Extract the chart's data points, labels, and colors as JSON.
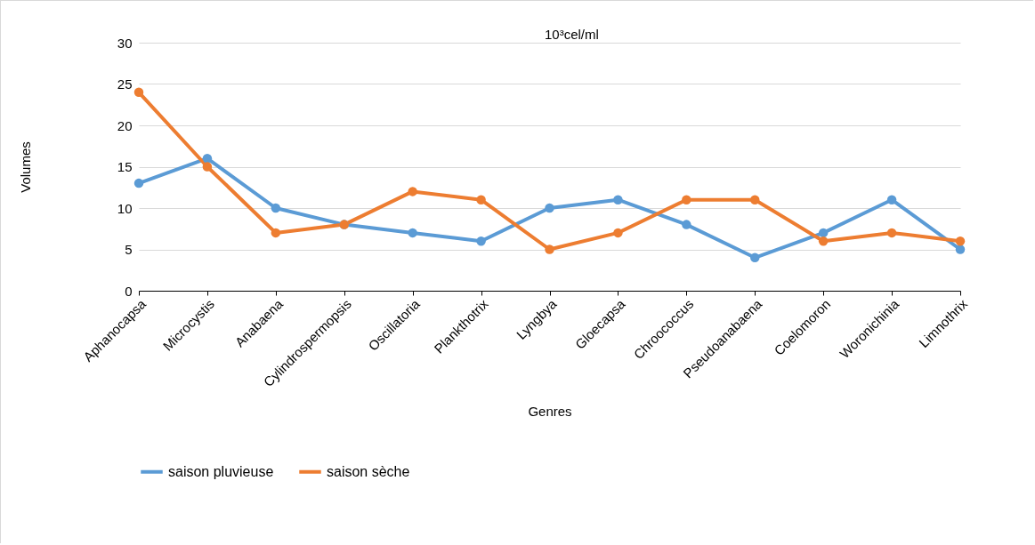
{
  "chart_data": {
    "type": "line",
    "xlabel": "Genres",
    "ylabel": "Volumes",
    "annotations": [
      "10³cel/ml"
    ],
    "categories": [
      "Aphanocapsa",
      "Microcystis",
      "Anabaena",
      "Cylindrospermopsis",
      "Oscillatoria",
      "Plankthotrix",
      "Lyngbya",
      "Gloecapsa",
      "Chroococcus",
      "Pseudoanabaena",
      "Coelomoron",
      "Woronichinia",
      "Limnothrix"
    ],
    "series": [
      {
        "name": "saison pluvieuse",
        "color": "#5b9bd5",
        "values": [
          13,
          16,
          10,
          8,
          7,
          6,
          10,
          11,
          8,
          4,
          7,
          11,
          5
        ]
      },
      {
        "name": "saison sèche",
        "color": "#ed7d31",
        "values": [
          24,
          15,
          7,
          8,
          12,
          11,
          5,
          7,
          11,
          11,
          6,
          7,
          6
        ]
      }
    ],
    "ylim": [
      0,
      30
    ],
    "yticks": [
      0,
      5,
      10,
      15,
      20,
      25,
      30
    ],
    "grid": "y",
    "legend": "bottom",
    "marker": "circle",
    "line_style": "solid"
  }
}
